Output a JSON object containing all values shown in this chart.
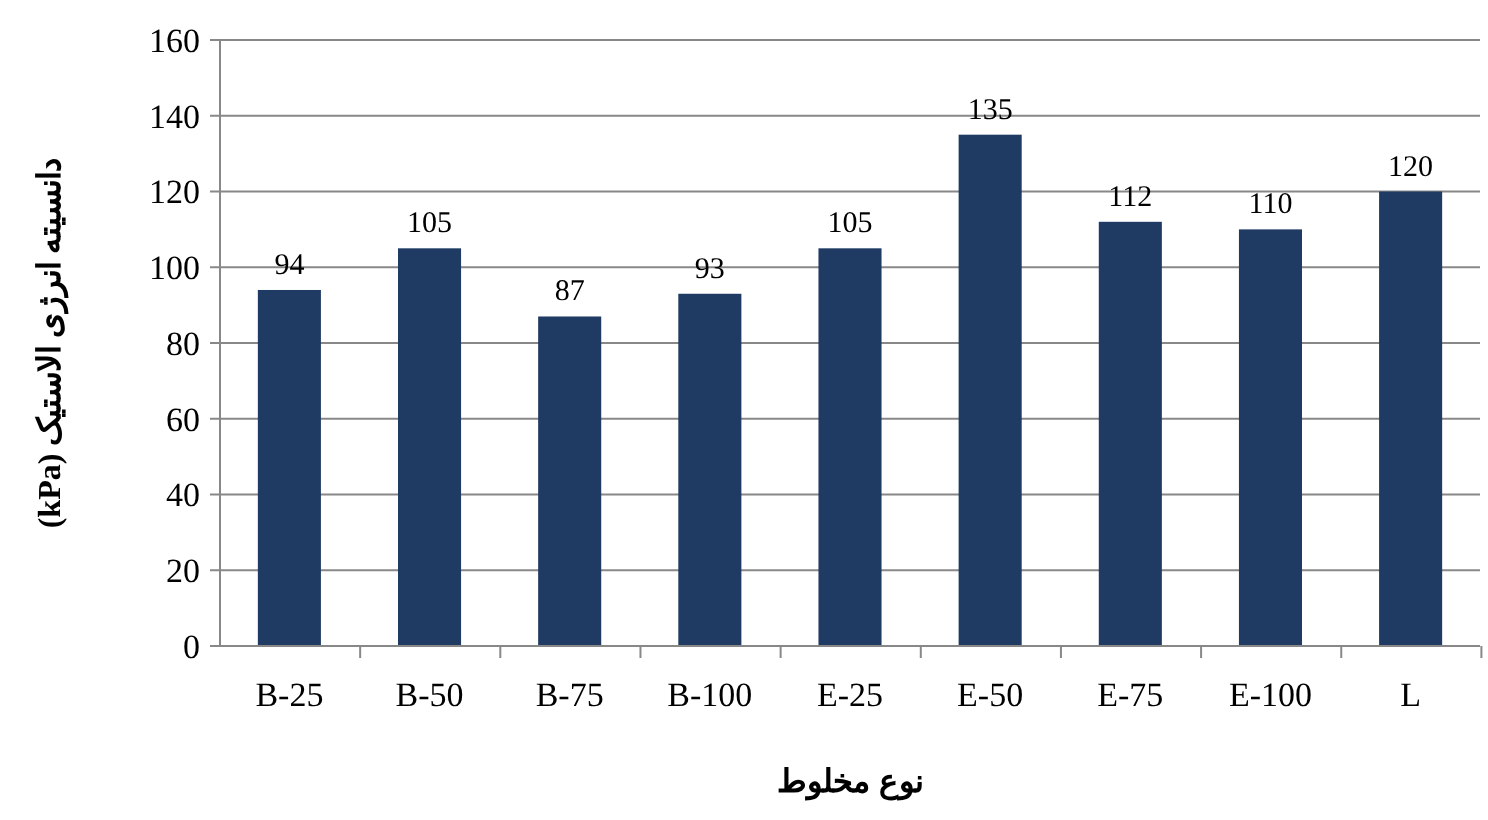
{
  "chart_data": {
    "type": "bar",
    "xlabel": "نوع مخلوط",
    "ylabel": "دانسیته انرژی الاستیک (kPa)",
    "categories": [
      "B-25",
      "B-50",
      "B-75",
      "B-100",
      "E-25",
      "E-50",
      "E-75",
      "E-100",
      "L"
    ],
    "values": [
      94,
      105,
      87,
      93,
      105,
      135,
      112,
      110,
      120
    ],
    "color": "#1f3a63",
    "ylim": [
      0,
      160
    ],
    "yticks": [
      0,
      20,
      40,
      60,
      80,
      100,
      120,
      140,
      160
    ],
    "grid": "y",
    "data_labels": true
  }
}
